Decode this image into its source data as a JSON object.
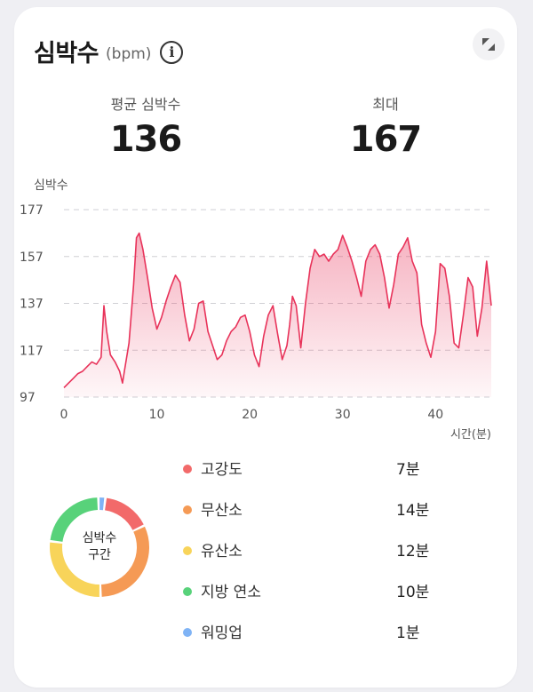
{
  "header": {
    "title": "심박수",
    "unit": "(bpm)",
    "info_icon": "info-icon",
    "expand_icon": "expand-icon"
  },
  "stats": {
    "avg_label": "평균 심박수",
    "avg_value": "136",
    "max_label": "최대",
    "max_value": "167"
  },
  "chart_data": {
    "type": "area",
    "ylabel": "심박수",
    "xlabel": "시간(분)",
    "xlim": [
      0,
      46
    ],
    "ylim": [
      97,
      177
    ],
    "yticks": [
      97,
      117,
      137,
      157,
      177
    ],
    "xticks": [
      0,
      10,
      20,
      30,
      40
    ],
    "line_color": "#e8335a",
    "series": [
      {
        "x": [
          0,
          0.5,
          1,
          1.5,
          2,
          2.5,
          3,
          3.5,
          4,
          4.3,
          4.6,
          5,
          5.5,
          6,
          6.3,
          6.5,
          7,
          7.5,
          7.8,
          8.1,
          8.5,
          9,
          9.5,
          10,
          10.5,
          11,
          11.5,
          12,
          12.5,
          13,
          13.5,
          14,
          14.5,
          15,
          15.5,
          16,
          16.5,
          17,
          17.5,
          18,
          18.5,
          19,
          19.5,
          20,
          20.5,
          21,
          21.5,
          22,
          22.5,
          23,
          23.5,
          24,
          24.3,
          24.6,
          25,
          25.5,
          26,
          26.5,
          27,
          27.5,
          28,
          28.5,
          29,
          29.5,
          30,
          30.5,
          31,
          31.5,
          32,
          32.5,
          33,
          33.5,
          34,
          34.5,
          35,
          35.5,
          36,
          36.5,
          37,
          37.5,
          38,
          38.5,
          39,
          39.5,
          40,
          40.5,
          41,
          41.5,
          42,
          42.5,
          43,
          43.5,
          44,
          44.5,
          45,
          45.5,
          46
        ],
        "y": [
          101,
          103,
          105,
          107,
          108,
          110,
          112,
          111,
          114,
          136,
          125,
          115,
          112,
          108,
          103,
          108,
          120,
          145,
          165,
          167,
          160,
          148,
          135,
          126,
          131,
          138,
          144,
          149,
          146,
          132,
          121,
          126,
          137,
          138,
          125,
          119,
          113,
          115,
          121,
          125,
          127,
          131,
          132,
          125,
          115,
          110,
          123,
          132,
          136,
          124,
          113,
          119,
          128,
          140,
          136,
          118,
          137,
          152,
          160,
          157,
          158,
          155,
          158,
          160,
          166,
          161,
          155,
          148,
          140,
          155,
          160,
          162,
          158,
          148,
          135,
          145,
          158,
          161,
          165,
          155,
          150,
          128,
          120,
          114,
          125,
          154,
          152,
          140,
          120,
          118,
          132,
          148,
          144,
          123,
          135,
          155,
          136
        ]
      }
    ]
  },
  "zones": {
    "center_line1": "심박수",
    "center_line2": "구간",
    "items": [
      {
        "label": "고강도",
        "value": "7분",
        "minutes": 7,
        "color": "#f26a6a"
      },
      {
        "label": "무산소",
        "value": "14분",
        "minutes": 14,
        "color": "#f59a55"
      },
      {
        "label": "유산소",
        "value": "12분",
        "minutes": 12,
        "color": "#f8d45a"
      },
      {
        "label": "지방 연소",
        "value": "10분",
        "minutes": 10,
        "color": "#58d27a"
      },
      {
        "label": "워밍업",
        "value": "1분",
        "minutes": 1,
        "color": "#7fb3f5"
      }
    ]
  }
}
